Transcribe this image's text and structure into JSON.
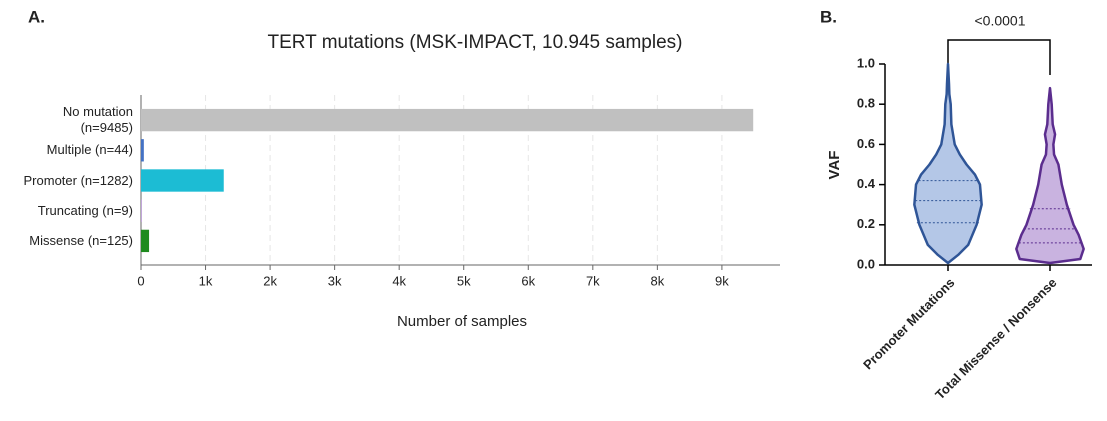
{
  "chart_data": [
    {
      "type": "hbar",
      "panel_label": "A.",
      "title": "TERT mutations (MSK-IMPACT, 10.945 samples)",
      "x_label": "Number of samples",
      "categories": [
        "No mutation (n=9485)",
        "Multiple (n=44)",
        "Promoter (n=1282)",
        "Truncating (n=9)",
        "Missense (n=125)"
      ],
      "values": [
        9485,
        44,
        1282,
        9,
        125
      ],
      "colors": [
        "#c0c0c0",
        "#4472c4",
        "#1cbcd4",
        "#9467bd",
        "#1e8a1e"
      ],
      "xlim": [
        0,
        9900
      ],
      "xticks": [
        0,
        {
          "value": 1000,
          "label": "1k"
        },
        {
          "value": 2000,
          "label": "2k"
        },
        {
          "value": 3000,
          "label": "3k"
        },
        {
          "value": 4000,
          "label": "4k"
        },
        {
          "value": 5000,
          "label": "5k"
        },
        {
          "value": 6000,
          "label": "6k"
        },
        {
          "value": 7000,
          "label": "7k"
        },
        {
          "value": 8000,
          "label": "8k"
        },
        {
          "value": 9000,
          "label": "9k"
        }
      ],
      "grid": true
    },
    {
      "type": "violin",
      "panel_label": "B.",
      "y_label": "VAF",
      "annotation": "<0.0001",
      "categories": [
        "Promoter Mutations",
        "Total Missense / Nonsense"
      ],
      "ylim": [
        0,
        1
      ],
      "yticks": [
        {
          "value": 0,
          "label": "0.0"
        },
        0.2,
        0.4,
        0.6,
        0.8,
        {
          "value": 1,
          "label": "1.0"
        }
      ],
      "series": [
        {
          "color": "#b4c7e7",
          "edge_color": "#2f5597",
          "q1": 0.21,
          "median": 0.32,
          "q3": 0.42,
          "profile_y": [
            0.01,
            0.05,
            0.1,
            0.2,
            0.3,
            0.4,
            0.45,
            0.5,
            0.55,
            0.6,
            0.7,
            0.8,
            0.85,
            0.9,
            1.0
          ],
          "profile_width": [
            0,
            0.3,
            0.6,
            0.85,
            1.0,
            0.95,
            0.8,
            0.55,
            0.35,
            0.2,
            0.1,
            0.08,
            0.04,
            0.03,
            0
          ]
        },
        {
          "color": "#c9b3e0",
          "edge_color": "#5b2d8e",
          "q1": 0.11,
          "median": 0.18,
          "q3": 0.28,
          "profile_y": [
            0.01,
            0.03,
            0.08,
            0.15,
            0.2,
            0.3,
            0.4,
            0.5,
            0.55,
            0.6,
            0.65,
            0.7,
            0.8,
            0.88
          ],
          "profile_width": [
            0,
            0.9,
            1.0,
            0.85,
            0.7,
            0.5,
            0.35,
            0.25,
            0.12,
            0.1,
            0.15,
            0.08,
            0.05,
            0
          ]
        }
      ]
    }
  ]
}
